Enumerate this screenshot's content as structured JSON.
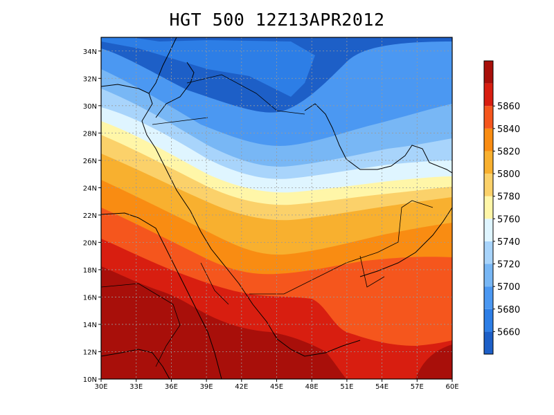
{
  "title": "HGT 500 12Z13APR2012",
  "map": {
    "lon_range": [
      30,
      60
    ],
    "lat_range": [
      10,
      35
    ],
    "lon_labels": [
      "30E",
      "33E",
      "36E",
      "39E",
      "42E",
      "45E",
      "48E",
      "51E",
      "54E",
      "57E",
      "60E"
    ],
    "lat_labels": [
      "10N",
      "12N",
      "14N",
      "16N",
      "18N",
      "20N",
      "22N",
      "24N",
      "26N",
      "28N",
      "30N",
      "32N",
      "34N"
    ],
    "grid": "dotted"
  },
  "colorbar": {
    "levels": [
      "5660",
      "5680",
      "5700",
      "5720",
      "5740",
      "5760",
      "5780",
      "5800",
      "5820",
      "5840",
      "5860"
    ],
    "colors": [
      "#1d5fc7",
      "#2d7ee6",
      "#4b98f2",
      "#78b7f5",
      "#a8d4fb",
      "#dff5ff",
      "#fff6a8",
      "#fbd16a",
      "#f8b02f",
      "#f98c12",
      "#f5561d",
      "#d81e10",
      "#a80f0a"
    ]
  }
}
